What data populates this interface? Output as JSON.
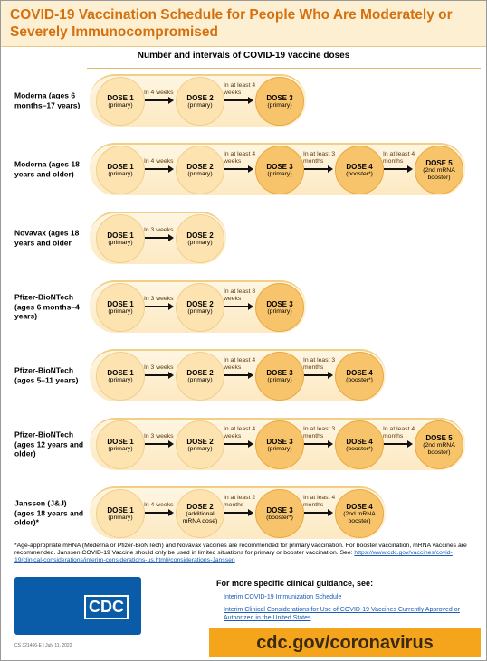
{
  "header": {
    "title": "COVID-19 Vaccination Schedule for People Who Are Moderately or Severely Immunocompromised",
    "subtitle": "Number and intervals of COVID-19 vaccine doses"
  },
  "rows": [
    {
      "vaccine": "Moderna (ages 6 months–17 years)",
      "doses": [
        {
          "name": "DOSE 1",
          "note": "(primary)"
        },
        {
          "name": "DOSE 2",
          "note": "(primary)"
        },
        {
          "name": "DOSE 3",
          "note": "(primary)"
        }
      ],
      "intervals": [
        "In 4 weeks",
        "In at least 4 weeks"
      ]
    },
    {
      "vaccine": "Moderna (ages 18 years and older)",
      "doses": [
        {
          "name": "DOSE 1",
          "note": "(primary)"
        },
        {
          "name": "DOSE 2",
          "note": "(primary)"
        },
        {
          "name": "DOSE 3",
          "note": "(primary)"
        },
        {
          "name": "DOSE 4",
          "note": "(booster*)"
        },
        {
          "name": "DOSE 5",
          "note": "(2nd mRNA booster)"
        }
      ],
      "intervals": [
        "In 4 weeks",
        "In at least 4 weeks",
        "In at least 3 months",
        "In at least 4 months"
      ]
    },
    {
      "vaccine": "Novavax (ages 18 years and older",
      "doses": [
        {
          "name": "DOSE 1",
          "note": "(primary)"
        },
        {
          "name": "DOSE 2",
          "note": "(primary)"
        }
      ],
      "intervals": [
        "In 3 weeks"
      ]
    },
    {
      "vaccine": "Pfizer-BioNTech (ages 6 months–4 years)",
      "doses": [
        {
          "name": "DOSE 1",
          "note": "(primary)"
        },
        {
          "name": "DOSE 2",
          "note": "(primary)"
        },
        {
          "name": "DOSE 3",
          "note": "(primary)"
        }
      ],
      "intervals": [
        "In 3 weeks",
        "In at least 8 weeks"
      ]
    },
    {
      "vaccine": "Pfizer-BioNTech (ages 5–11 years)",
      "doses": [
        {
          "name": "DOSE 1",
          "note": "(primary)"
        },
        {
          "name": "DOSE 2",
          "note": "(primary)"
        },
        {
          "name": "DOSE 3",
          "note": "(primary)"
        },
        {
          "name": "DOSE 4",
          "note": "(booster*)"
        }
      ],
      "intervals": [
        "In 3 weeks",
        "In at least 4 weeks",
        "In at least 3 months"
      ]
    },
    {
      "vaccine": "Pfizer-BioNTech (ages 12 years and older)",
      "doses": [
        {
          "name": "DOSE 1",
          "note": "(primary)"
        },
        {
          "name": "DOSE 2",
          "note": "(primary)"
        },
        {
          "name": "DOSE 3",
          "note": "(primary)"
        },
        {
          "name": "DOSE 4",
          "note": "(booster*)"
        },
        {
          "name": "DOSE 5",
          "note": "(2nd mRNA booster)"
        }
      ],
      "intervals": [
        "In 3 weeks",
        "In at least 4 weeks",
        "In at least 3 months",
        "In at least 4 months"
      ]
    },
    {
      "vaccine": "Janssen (J&J) (ages 18 years and older)*",
      "doses": [
        {
          "name": "DOSE 1",
          "note": "(primary)"
        },
        {
          "name": "DOSE 2",
          "note": "(additional mRNA dose)"
        },
        {
          "name": "DOSE 3",
          "note": "(booster*)"
        },
        {
          "name": "DOSE 4",
          "note": "(2nd mRNA booster)"
        }
      ],
      "intervals": [
        "In 4 weeks",
        "In at least 2 months",
        "In at least 4 months"
      ]
    }
  ],
  "footnote": {
    "text": "*Age-appropriate mRNA (Moderna or Pfizer-BioNTech) and Novavax vaccines are recommended for primary vaccination. For booster vaccination, mRNA vaccines are recommended. Janssen COVID-19 Vaccine should only be used in limited situations for primary or booster vaccination. See:",
    "link": "https://www.cdc.gov/vaccines/covid-19/clinical-considerations/interim-considerations-us.html#considerations-Janssen"
  },
  "footer": {
    "logo": "CDC",
    "code": "CS 321466-E | July 11, 2022",
    "guidance_heading": "For more specific clinical guidance, see:",
    "links": [
      "Interim COVID-19 Immunization Schedule",
      "Interim Clinical Considerations for Use of COVID-19 Vaccines Currently Approved or Authorized in the United States"
    ],
    "url": "cdc.gov/coronavirus"
  }
}
